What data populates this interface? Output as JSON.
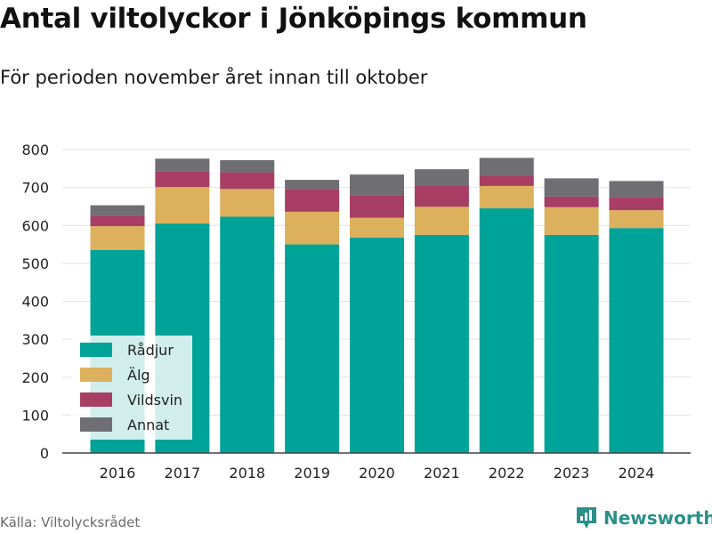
{
  "title": "Antal viltolyckor i Jönköpings kommun",
  "subtitle": "För perioden november året innan till oktober",
  "source": "Källa: Viltolycksrådet",
  "brand": "Newsworthy",
  "colors": {
    "Rådjur": "#00a398",
    "Älg": "#dcb05d",
    "Vildsvin": "#a83e63",
    "Annat": "#6f6f73",
    "brand": "#2a9089"
  },
  "chart_data": {
    "type": "bar",
    "stacked": true,
    "title": "Antal viltolyckor i Jönköpings kommun",
    "subtitle": "För perioden november året innan till oktober",
    "categories": [
      "2016",
      "2017",
      "2018",
      "2019",
      "2020",
      "2021",
      "2022",
      "2023",
      "2024"
    ],
    "series": [
      {
        "name": "Rådjur",
        "values": [
          535,
          605,
          623,
          550,
          568,
          575,
          645,
          575,
          593
        ]
      },
      {
        "name": "Älg",
        "values": [
          63,
          96,
          73,
          86,
          52,
          74,
          59,
          73,
          47
        ]
      },
      {
        "name": "Vildsvin",
        "values": [
          27,
          42,
          44,
          60,
          59,
          57,
          27,
          28,
          35
        ]
      },
      {
        "name": "Annat",
        "values": [
          28,
          33,
          32,
          24,
          55,
          42,
          47,
          48,
          42
        ]
      }
    ],
    "ylim": [
      0,
      800
    ],
    "yticks": [
      0,
      100,
      200,
      300,
      400,
      500,
      600,
      700,
      800
    ],
    "grid": true,
    "legend_position": "bottom-left"
  }
}
